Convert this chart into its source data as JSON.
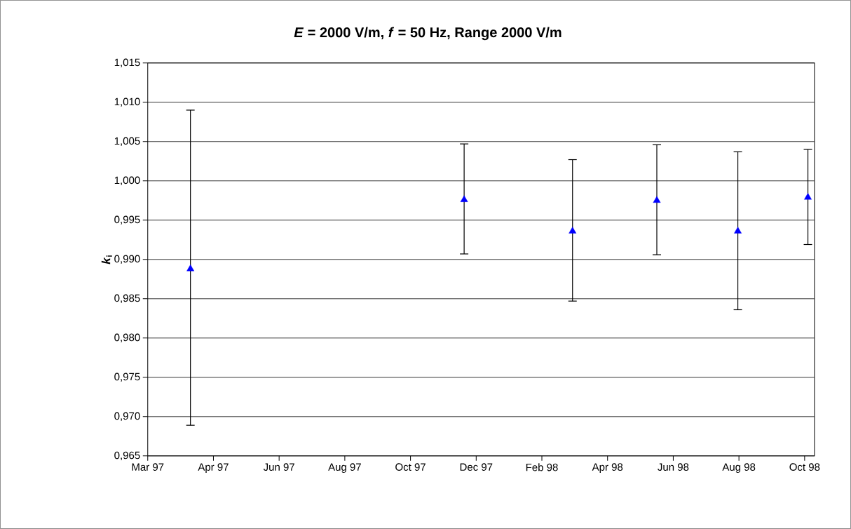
{
  "chart_data": {
    "type": "scatter",
    "title": "*E* = 2000 V/m,  *f* = 50 Hz, Range 2000 V/m",
    "ylabel": "*k*$_{i}$",
    "x": [
      "1997-04-09",
      "1997-12-15",
      "1998-03-24",
      "1998-06-09",
      "1998-08-22",
      "1998-10-25"
    ],
    "series": [
      {
        "color": "#0000ff",
        "values": [
          0.9888,
          0.9976,
          0.9936,
          0.9975,
          0.9936,
          0.9979
        ],
        "errors": [
          [
            0.9689,
            1.009
          ],
          [
            0.9907,
            1.0047
          ],
          [
            0.9847,
            1.0027
          ],
          [
            0.9906,
            1.0046
          ],
          [
            0.9836,
            1.0037
          ],
          [
            0.9919,
            1.004
          ]
        ]
      }
    ],
    "marker": "triangle",
    "grid": "y",
    "xlim": [
      "1997-03-01",
      "1998-10-31"
    ],
    "xticks": [
      {
        "value": "1997-03-01",
        "label": "Mar 97"
      },
      {
        "value": "1997-04-30",
        "label": "Apr 97"
      },
      {
        "value": "1997-06-29",
        "label": "Jun 97"
      },
      {
        "value": "1997-08-28",
        "label": "Aug 97"
      },
      {
        "value": "1997-10-27",
        "label": "Oct 97"
      },
      {
        "value": "1997-12-26",
        "label": "Dec 97"
      },
      {
        "value": "1998-02-24",
        "label": "Feb 98"
      },
      {
        "value": "1998-04-25",
        "label": "Apr 98"
      },
      {
        "value": "1998-06-24",
        "label": "Jun 98"
      },
      {
        "value": "1998-08-23",
        "label": "Aug 98"
      },
      {
        "value": "1998-10-22",
        "label": "Oct 98"
      }
    ],
    "ylim": [
      0.965,
      1.015
    ],
    "yticks": [
      {
        "value": 0.965,
        "label": "0,965"
      },
      {
        "value": 0.97,
        "label": "0,970"
      },
      {
        "value": 0.975,
        "label": "0,975"
      },
      {
        "value": 0.98,
        "label": "0,980"
      },
      {
        "value": 0.985,
        "label": "0,985"
      },
      {
        "value": 0.99,
        "label": "0,990"
      },
      {
        "value": 0.995,
        "label": "0,995"
      },
      {
        "value": 1.0,
        "label": "1,000"
      },
      {
        "value": 1.005,
        "label": "1,005"
      },
      {
        "value": 1.01,
        "label": "1,010"
      },
      {
        "value": 1.015,
        "label": "1,015"
      }
    ]
  }
}
